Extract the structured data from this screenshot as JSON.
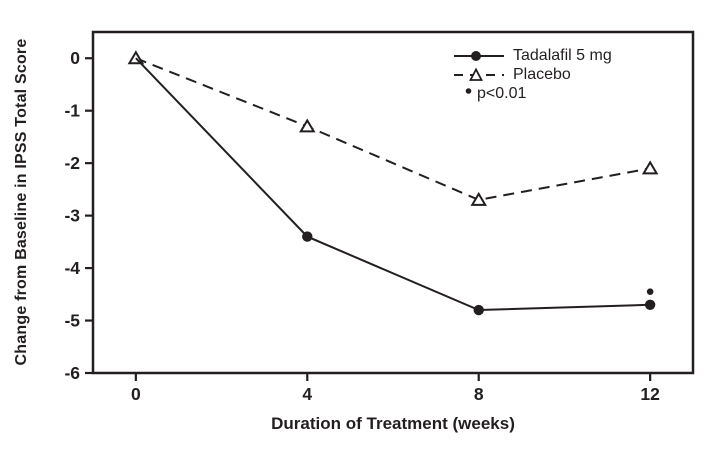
{
  "chart_data": {
    "type": "line",
    "title": "",
    "xlabel": "Duration of Treatment (weeks)",
    "ylabel": "Change from Baseline in IPSS Total Score",
    "x": [
      0,
      4,
      8,
      12
    ],
    "xticks": [
      "0",
      "4",
      "8",
      "12"
    ],
    "yticks": [
      "0",
      "-1",
      "-2",
      "-3",
      "-4",
      "-5",
      "-6"
    ],
    "xlim": [
      -1,
      13
    ],
    "ylim": [
      -6,
      0.5
    ],
    "grid": false,
    "axis_color": "#231f20",
    "background_color": "#ffffff",
    "series": [
      {
        "name": "Tadalafil 5 mg",
        "values": [
          0,
          -3.4,
          -4.8,
          -4.7
        ],
        "line_style": "solid",
        "marker": "filled-circle",
        "color": "#231f20",
        "first_marker_index": 1
      },
      {
        "name": "Placebo",
        "values": [
          0,
          -1.3,
          -2.7,
          -2.1
        ],
        "line_style": "dashed",
        "marker": "open-triangle",
        "color": "#231f20",
        "first_marker_index": 0
      }
    ],
    "legend": {
      "position": "top-right-inside",
      "significance_note": "p<0.01"
    },
    "annotations": [
      {
        "symbol": "small-filled-dot",
        "x": 12,
        "y": -4.45,
        "text": "p<0.01"
      }
    ]
  }
}
